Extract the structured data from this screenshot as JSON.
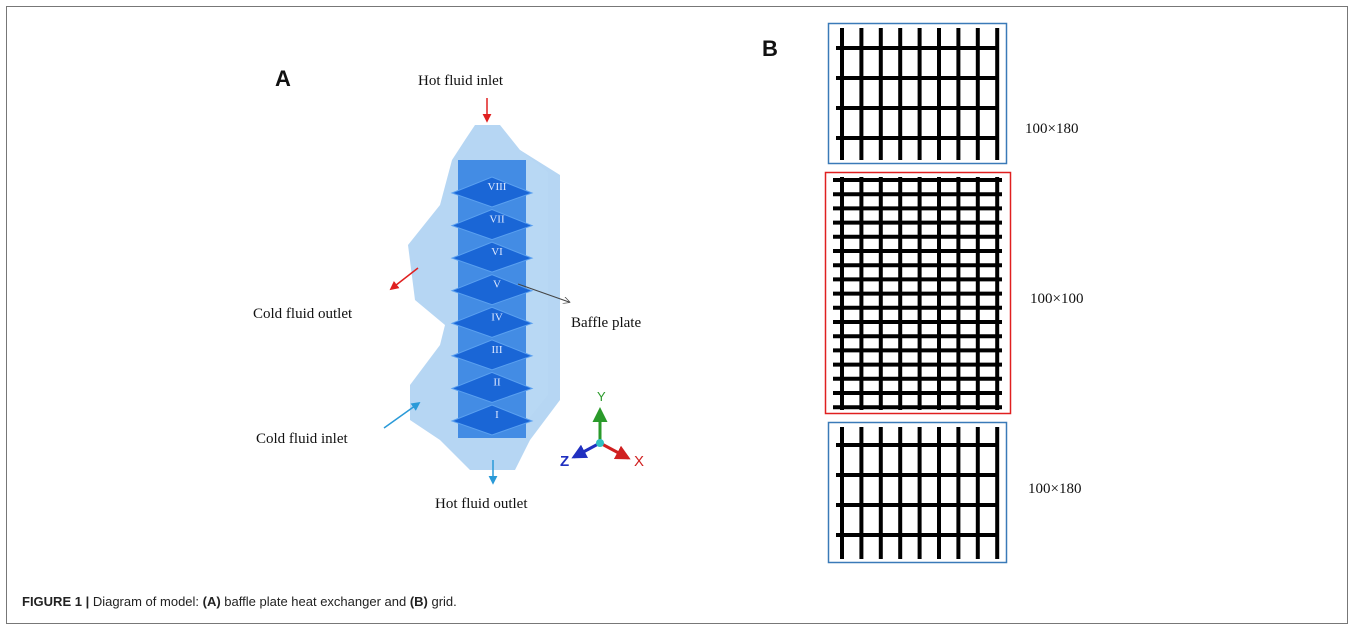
{
  "panel_a": {
    "label": "A",
    "hot_inlet": "Hot fluid inlet",
    "cold_outlet": "Cold fluid  outlet",
    "baffle": "Baffle plate",
    "cold_inlet": "Cold fluid  inlet",
    "hot_outlet": "Hot fluid  outlet",
    "plates": [
      "VIII",
      "VII",
      "VI",
      "V",
      "IV",
      "III",
      "II",
      "I"
    ],
    "axes": {
      "y": "Y",
      "x": "X",
      "z": "Z"
    }
  },
  "panel_b": {
    "label": "B",
    "regions": [
      "100×180",
      "100×100",
      "100×180"
    ]
  },
  "caption": {
    "figure": "FIGURE 1 |",
    "parts": [
      " Diagram of model: ",
      "(A)",
      " baffle plate heat exchanger and ",
      "(B)",
      " grid."
    ]
  }
}
